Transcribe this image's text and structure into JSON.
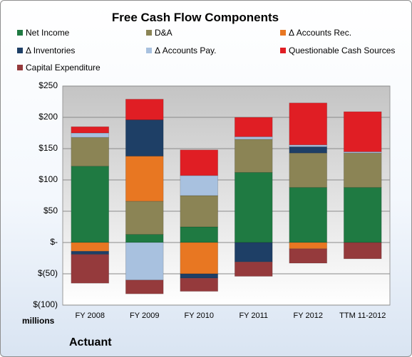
{
  "chart_data": {
    "type": "bar",
    "stacked": true,
    "title": "Free Cash Flow Components",
    "xlabel": "",
    "ylabel": "",
    "units_label": "millions",
    "footer": "Actuant",
    "categories": [
      "FY 2008",
      "FY 2009",
      "FY 2010",
      "FY 2011",
      "FY 2012",
      "TTM 11-2012"
    ],
    "ylim": [
      -100,
      250
    ],
    "yticks": [
      -100,
      -50,
      0,
      50,
      100,
      150,
      200,
      250
    ],
    "ytick_labels": [
      "$(100)",
      "$(50)",
      "$-",
      "$50",
      "$100",
      "$150",
      "$200",
      "$250"
    ],
    "grid": true,
    "legend_position": "top",
    "series": [
      {
        "name": "Net Income",
        "color": "#1f7a42",
        "values": [
          122,
          13,
          25,
          112,
          88,
          88
        ]
      },
      {
        "name": "D&A",
        "color": "#8b8455",
        "values": [
          46,
          53,
          50,
          53,
          55,
          55
        ]
      },
      {
        "name": "Δ Accounts Rec.",
        "color": "#e87722",
        "values": [
          -14,
          72,
          -50,
          0,
          -10,
          0
        ]
      },
      {
        "name": "Δ Inventories",
        "color": "#1e3f66",
        "values": [
          -5,
          58,
          -7,
          -31,
          10,
          0
        ]
      },
      {
        "name": "Δ Accounts Pay.",
        "color": "#a8c1df",
        "values": [
          7,
          -60,
          32,
          4,
          3,
          2
        ]
      },
      {
        "name": "Questionable Cash Sources",
        "color": "#e01e24",
        "values": [
          10,
          33,
          41,
          31,
          67,
          64
        ]
      },
      {
        "name": "Capital Expenditure",
        "color": "#953a3c",
        "values": [
          -46,
          -22,
          -21,
          -23,
          -23,
          -26
        ]
      }
    ]
  }
}
